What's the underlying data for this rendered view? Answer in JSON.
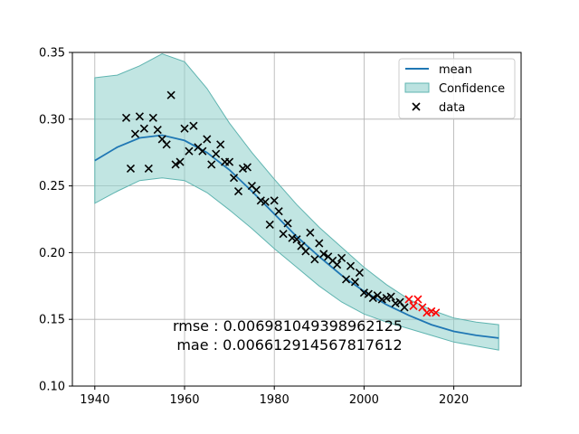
{
  "chart_data": {
    "type": "line",
    "xlim": [
      1935,
      2035
    ],
    "ylim": [
      0.1,
      0.35
    ],
    "x_ticks": [
      1940,
      1960,
      1980,
      2000,
      2020
    ],
    "y_ticks": [
      0.1,
      0.15,
      0.2,
      0.25,
      0.3,
      0.35
    ],
    "x_tick_labels": [
      "1940",
      "1960",
      "1980",
      "2000",
      "2020"
    ],
    "y_tick_labels": [
      "0.10",
      "0.15",
      "0.20",
      "0.25",
      "0.30",
      "0.35"
    ],
    "grid": true,
    "legend_position": "top-right",
    "colors": {
      "mean": "#1f77b4",
      "confidence_fill": "#8ecfcb",
      "confidence_edge": "#5fb4b0",
      "data": "#000000",
      "test_data": "#ff0000"
    },
    "series": [
      {
        "name": "mean",
        "type": "line",
        "x": [
          1940,
          1945,
          1950,
          1955,
          1960,
          1965,
          1970,
          1975,
          1980,
          1985,
          1990,
          1995,
          2000,
          2005,
          2010,
          2015,
          2020,
          2025,
          2030
        ],
        "y": [
          0.269,
          0.279,
          0.286,
          0.288,
          0.284,
          0.275,
          0.262,
          0.246,
          0.229,
          0.212,
          0.197,
          0.183,
          0.171,
          0.161,
          0.153,
          0.146,
          0.141,
          0.138,
          0.136
        ]
      },
      {
        "name": "Confidence",
        "type": "band",
        "x": [
          1940,
          1945,
          1950,
          1955,
          1960,
          1965,
          1970,
          1975,
          1980,
          1985,
          1990,
          1995,
          2000,
          2005,
          2010,
          2015,
          2020,
          2025,
          2030
        ],
        "lower": [
          0.237,
          0.246,
          0.254,
          0.256,
          0.254,
          0.245,
          0.232,
          0.218,
          0.203,
          0.189,
          0.175,
          0.163,
          0.154,
          0.148,
          0.143,
          0.138,
          0.133,
          0.13,
          0.127
        ],
        "upper": [
          0.331,
          0.333,
          0.34,
          0.349,
          0.343,
          0.323,
          0.297,
          0.275,
          0.255,
          0.236,
          0.219,
          0.204,
          0.189,
          0.176,
          0.165,
          0.157,
          0.151,
          0.148,
          0.146
        ]
      },
      {
        "name": "data",
        "type": "scatter",
        "x": [
          1947,
          1948,
          1949,
          1950,
          1951,
          1952,
          1953,
          1954,
          1955,
          1956,
          1957,
          1958,
          1959,
          1960,
          1961,
          1962,
          1963,
          1964,
          1965,
          1966,
          1967,
          1968,
          1969,
          1970,
          1971,
          1972,
          1973,
          1974,
          1975,
          1976,
          1977,
          1978,
          1979,
          1980,
          1981,
          1982,
          1983,
          1984,
          1985,
          1986,
          1987,
          1988,
          1989,
          1990,
          1991,
          1992,
          1993,
          1994,
          1995,
          1996,
          1997,
          1998,
          1999,
          2000,
          2001,
          2002,
          2003,
          2004,
          2005,
          2006,
          2007,
          2008,
          2009
        ],
        "y": [
          0.301,
          0.263,
          0.289,
          0.302,
          0.293,
          0.263,
          0.301,
          0.292,
          0.285,
          0.281,
          0.318,
          0.266,
          0.268,
          0.293,
          0.276,
          0.295,
          0.279,
          0.276,
          0.285,
          0.266,
          0.274,
          0.281,
          0.268,
          0.268,
          0.256,
          0.246,
          0.263,
          0.264,
          0.25,
          0.247,
          0.239,
          0.238,
          0.221,
          0.239,
          0.231,
          0.214,
          0.222,
          0.211,
          0.21,
          0.205,
          0.201,
          0.215,
          0.195,
          0.207,
          0.199,
          0.197,
          0.194,
          0.191,
          0.196,
          0.18,
          0.19,
          0.178,
          0.185,
          0.17,
          0.169,
          0.166,
          0.168,
          0.165,
          0.166,
          0.167,
          0.162,
          0.163,
          0.159
        ]
      },
      {
        "name": "",
        "type": "scatter",
        "x": [
          2010,
          2011,
          2012,
          2013,
          2014,
          2015,
          2016
        ],
        "y": [
          0.165,
          0.16,
          0.165,
          0.159,
          0.155,
          0.156,
          0.155
        ]
      }
    ],
    "annotations": [
      "rmse : 0.006981049398962125",
      "mae : 0.006612914567817612"
    ]
  }
}
